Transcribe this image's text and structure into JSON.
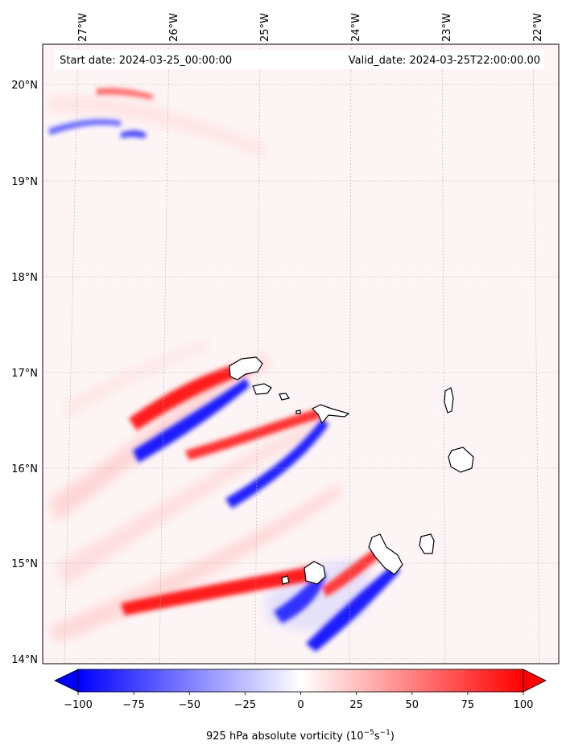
{
  "map": {
    "start_label": "Start date: 2024-03-25_00:00:00",
    "valid_label": "Valid_date: 2024-03-25T22:00:00.00",
    "lon_ticks": [
      "27°W",
      "26°W",
      "25°W",
      "24°W",
      "23°W",
      "22°W"
    ],
    "lat_ticks": [
      "20°N",
      "19°N",
      "18°N",
      "17°N",
      "16°N",
      "15°N",
      "14°N"
    ]
  },
  "colorbar": {
    "label": "925 hPa absolute vorticity (10",
    "label_exp1": "−5",
    "label_mid": "s",
    "label_exp2": "−1",
    "label_close": ")",
    "range": [
      -100,
      100
    ],
    "ticks": [
      {
        "value": -100,
        "label": "−100"
      },
      {
        "value": -75,
        "label": "−75"
      },
      {
        "value": -50,
        "label": "−50"
      },
      {
        "value": -25,
        "label": "−25"
      },
      {
        "value": 0,
        "label": "0"
      },
      {
        "value": 25,
        "label": "25"
      },
      {
        "value": 50,
        "label": "50"
      },
      {
        "value": 75,
        "label": "75"
      },
      {
        "value": 100,
        "label": "100"
      }
    ],
    "colors": {
      "negative": "#0000ff",
      "zero": "#ffffff",
      "positive": "#ff0000"
    }
  }
}
